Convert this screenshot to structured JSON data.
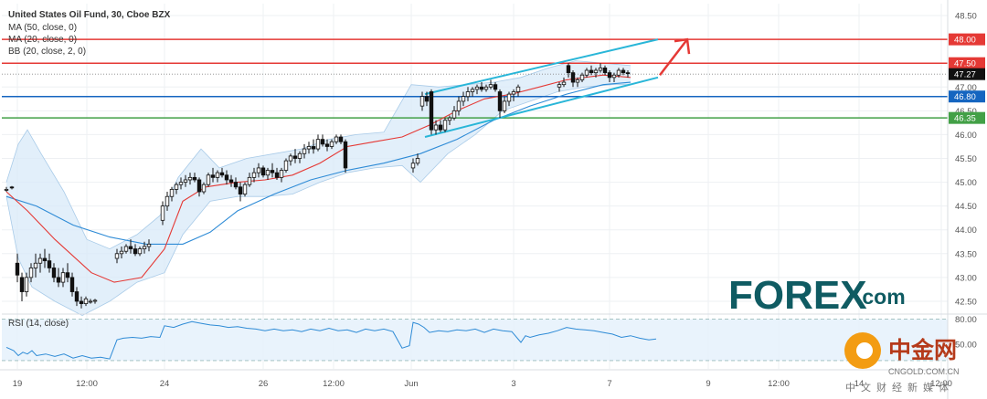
{
  "legend": {
    "title": "United States Oil Fund, 30, Cboe BZX",
    "ma50": "MA (50, close, 0)",
    "ma20": "MA (20, close, 0)",
    "bb": "BB (20, close, 2, 0)"
  },
  "rsi_label": "RSI (14, close)",
  "watermark": {
    "brand": "FOREX",
    "suffix": ".com",
    "cn_brand": "中金网",
    "cn_site": "CNGOLD.COM.CN",
    "cn_sub": "中文财经新媒体"
  },
  "colors": {
    "up": "#26a69a",
    "candle": "#111111",
    "ma20": "#e53935",
    "ma50": "#2e8bd6",
    "bb_fill": "#d8eaf8",
    "channel": "#29b6d8",
    "arrow": "#e53935",
    "level_red": "#e53935",
    "level_blue": "#1565c0",
    "level_green": "#43a047",
    "price_tag": "#111111",
    "rsi_line": "#2e8bd6"
  },
  "chart_data": {
    "type": "candlestick",
    "price_axis": {
      "min": 42.25,
      "max": 48.75,
      "ticks": [
        "48.50",
        "48.00",
        "47.50",
        "47.00",
        "46.50",
        "46.00",
        "45.50",
        "45.00",
        "44.50",
        "44.00",
        "43.50",
        "43.00",
        "42.50"
      ]
    },
    "rsi_axis": {
      "min": 20,
      "max": 80,
      "ticks": [
        "80.00",
        "50.00"
      ]
    },
    "x_axis": {
      "ticks": [
        "19",
        "12:00",
        "24",
        "26",
        "12:00",
        "Jun",
        "3",
        "7",
        "9",
        "12:00",
        "14",
        "12:00"
      ]
    },
    "levels": [
      {
        "value": 48.0,
        "label": "48.00",
        "color": "#e53935"
      },
      {
        "value": 47.5,
        "label": "47.50",
        "color": "#e53935"
      },
      {
        "value": 46.8,
        "label": "46.80",
        "color": "#1565c0"
      },
      {
        "value": 46.35,
        "label": "46.35",
        "color": "#43a047"
      }
    ],
    "last_price": {
      "value": 47.27,
      "label": "47.27"
    },
    "candles": [
      [
        44.85,
        44.9,
        44.8,
        44.85
      ],
      [
        44.9,
        44.92,
        44.85,
        44.88
      ],
      [
        43.3,
        43.5,
        42.9,
        43.05
      ],
      [
        43.0,
        43.1,
        42.5,
        42.7
      ],
      [
        42.7,
        43.1,
        42.6,
        43.0
      ],
      [
        43.0,
        43.3,
        42.9,
        43.2
      ],
      [
        43.2,
        43.5,
        43.0,
        43.3
      ],
      [
        43.3,
        43.5,
        43.1,
        43.4
      ],
      [
        43.4,
        43.6,
        43.2,
        43.35
      ],
      [
        43.35,
        43.5,
        43.1,
        43.2
      ],
      [
        43.2,
        43.3,
        42.9,
        43.0
      ],
      [
        43.0,
        43.2,
        42.8,
        42.9
      ],
      [
        42.9,
        43.2,
        42.8,
        43.1
      ],
      [
        43.1,
        43.3,
        42.9,
        43.0
      ],
      [
        43.0,
        43.1,
        42.6,
        42.7
      ],
      [
        42.7,
        42.8,
        42.4,
        42.5
      ],
      [
        42.5,
        42.6,
        42.35,
        42.45
      ],
      [
        42.45,
        42.6,
        42.4,
        42.55
      ],
      [
        42.5,
        42.55,
        42.45,
        42.5
      ],
      [
        42.5,
        42.55,
        42.45,
        42.52
      ],
      [
        43.4,
        43.6,
        43.3,
        43.5
      ],
      [
        43.5,
        43.65,
        43.4,
        43.55
      ],
      [
        43.55,
        43.7,
        43.5,
        43.65
      ],
      [
        43.65,
        43.8,
        43.5,
        43.6
      ],
      [
        43.6,
        43.7,
        43.45,
        43.5
      ],
      [
        43.5,
        43.65,
        43.45,
        43.6
      ],
      [
        43.6,
        43.75,
        43.5,
        43.65
      ],
      [
        43.65,
        43.8,
        43.55,
        43.7
      ],
      [
        44.2,
        44.6,
        44.1,
        44.5
      ],
      [
        44.5,
        44.8,
        44.4,
        44.7
      ],
      [
        44.7,
        44.9,
        44.6,
        44.85
      ],
      [
        44.85,
        45.0,
        44.75,
        44.95
      ],
      [
        44.95,
        45.1,
        44.85,
        45.0
      ],
      [
        45.0,
        45.15,
        44.9,
        45.05
      ],
      [
        45.05,
        45.2,
        44.95,
        45.1
      ],
      [
        45.1,
        45.2,
        45.0,
        45.05
      ],
      [
        45.05,
        45.1,
        44.7,
        44.8
      ],
      [
        44.8,
        45.0,
        44.75,
        44.95
      ],
      [
        44.95,
        45.2,
        44.9,
        45.15
      ],
      [
        45.15,
        45.3,
        45.0,
        45.1
      ],
      [
        45.1,
        45.25,
        45.0,
        45.2
      ],
      [
        45.2,
        45.3,
        45.1,
        45.15
      ],
      [
        45.15,
        45.25,
        44.95,
        45.05
      ],
      [
        45.05,
        45.15,
        44.9,
        45.0
      ],
      [
        45.0,
        45.1,
        44.85,
        44.9
      ],
      [
        44.9,
        45.0,
        44.6,
        44.75
      ],
      [
        44.75,
        45.0,
        44.7,
        44.95
      ],
      [
        44.95,
        45.2,
        44.9,
        45.1
      ],
      [
        45.1,
        45.3,
        45.0,
        45.2
      ],
      [
        45.2,
        45.4,
        45.1,
        45.3
      ],
      [
        45.3,
        45.35,
        45.1,
        45.15
      ],
      [
        45.15,
        45.3,
        45.05,
        45.25
      ],
      [
        45.25,
        45.4,
        45.1,
        45.2
      ],
      [
        45.2,
        45.3,
        45.05,
        45.1
      ],
      [
        45.1,
        45.3,
        45.0,
        45.25
      ],
      [
        45.25,
        45.5,
        45.2,
        45.45
      ],
      [
        45.45,
        45.6,
        45.35,
        45.55
      ],
      [
        45.55,
        45.7,
        45.4,
        45.5
      ],
      [
        45.5,
        45.65,
        45.4,
        45.6
      ],
      [
        45.6,
        45.8,
        45.5,
        45.7
      ],
      [
        45.7,
        45.85,
        45.6,
        45.75
      ],
      [
        45.75,
        45.9,
        45.6,
        45.7
      ],
      [
        45.7,
        46.0,
        45.65,
        45.9
      ],
      [
        45.9,
        46.0,
        45.75,
        45.8
      ],
      [
        45.8,
        45.9,
        45.65,
        45.75
      ],
      [
        45.75,
        45.9,
        45.7,
        45.85
      ],
      [
        45.85,
        46.0,
        45.8,
        45.95
      ],
      [
        45.95,
        46.0,
        45.8,
        45.85
      ],
      [
        45.85,
        45.9,
        45.2,
        45.3
      ],
      [
        45.3,
        45.5,
        45.2,
        45.4
      ],
      [
        45.4,
        45.6,
        45.35,
        45.5
      ],
      [
        46.6,
        46.9,
        46.5,
        46.8
      ],
      [
        46.8,
        46.9,
        46.6,
        46.7
      ],
      [
        46.9,
        46.95,
        46.0,
        46.1
      ],
      [
        46.1,
        46.3,
        46.0,
        46.2
      ],
      [
        46.2,
        46.3,
        46.05,
        46.1
      ],
      [
        46.1,
        46.35,
        46.05,
        46.3
      ],
      [
        46.3,
        46.4,
        46.2,
        46.35
      ],
      [
        46.35,
        46.6,
        46.3,
        46.5
      ],
      [
        46.5,
        46.8,
        46.4,
        46.7
      ],
      [
        46.7,
        46.9,
        46.6,
        46.8
      ],
      [
        46.8,
        47.0,
        46.7,
        46.9
      ],
      [
        46.9,
        47.0,
        46.8,
        46.95
      ],
      [
        46.95,
        47.05,
        46.85,
        47.0
      ],
      [
        47.0,
        47.1,
        46.9,
        46.95
      ],
      [
        46.95,
        47.05,
        46.9,
        47.0
      ],
      [
        47.0,
        47.15,
        46.95,
        47.05
      ],
      [
        47.05,
        47.1,
        46.9,
        46.95
      ],
      [
        46.9,
        46.95,
        46.35,
        46.5
      ],
      [
        46.5,
        46.8,
        46.45,
        46.7
      ],
      [
        46.7,
        46.9,
        46.6,
        46.85
      ],
      [
        46.85,
        46.95,
        46.7,
        46.9
      ],
      [
        46.9,
        47.05,
        46.8,
        47.0
      ],
      [
        47.0,
        47.1,
        46.9,
        47.05
      ],
      [
        47.05,
        47.2,
        47.0,
        47.1
      ],
      [
        47.45,
        47.5,
        47.2,
        47.3
      ],
      [
        47.3,
        47.35,
        47.0,
        47.1
      ],
      [
        47.1,
        47.2,
        47.0,
        47.15
      ],
      [
        47.15,
        47.3,
        47.1,
        47.25
      ],
      [
        47.25,
        47.4,
        47.2,
        47.35
      ],
      [
        47.35,
        47.45,
        47.25,
        47.3
      ],
      [
        47.3,
        47.4,
        47.2,
        47.35
      ],
      [
        47.35,
        47.5,
        47.3,
        47.4
      ],
      [
        47.4,
        47.45,
        47.25,
        47.3
      ],
      [
        47.3,
        47.35,
        47.1,
        47.2
      ],
      [
        47.2,
        47.3,
        47.1,
        47.25
      ],
      [
        47.25,
        47.4,
        47.2,
        47.35
      ],
      [
        47.35,
        47.4,
        47.25,
        47.3
      ],
      [
        47.3,
        47.35,
        47.2,
        47.28
      ],
      [
        47.28,
        47.32,
        47.2,
        47.26
      ],
      [
        47.26,
        47.3,
        47.22,
        47.27
      ]
    ],
    "candle_x": [
      7,
      13,
      19,
      24,
      29,
      34,
      39,
      44,
      49,
      54,
      59,
      64,
      69,
      74,
      79,
      84,
      89,
      94,
      99,
      104,
      128,
      133,
      138,
      143,
      148,
      153,
      158,
      163,
      178,
      183,
      188,
      193,
      198,
      203,
      208,
      213,
      218,
      223,
      228,
      233,
      238,
      243,
      248,
      253,
      258,
      263,
      268,
      273,
      278,
      283,
      288,
      293,
      298,
      303,
      308,
      313,
      318,
      323,
      328,
      333,
      338,
      343,
      348,
      353,
      358,
      363,
      368,
      373,
      378,
      452,
      457,
      462,
      467,
      472,
      477,
      482,
      487,
      492,
      497,
      502,
      507,
      512,
      517,
      522,
      527,
      532,
      537,
      542,
      547,
      552,
      557,
      562,
      567,
      612,
      617,
      622,
      627,
      632,
      637,
      642,
      647,
      652,
      657,
      662,
      667,
      672,
      677,
      682,
      687
    ],
    "ma20": [
      [
        7,
        44.8
      ],
      [
        30,
        44.4
      ],
      [
        60,
        43.8
      ],
      [
        100,
        43.1
      ],
      [
        125,
        42.9
      ],
      [
        155,
        43.0
      ],
      [
        180,
        43.6
      ],
      [
        200,
        44.6
      ],
      [
        225,
        44.9
      ],
      [
        260,
        45.0
      ],
      [
        290,
        45.05
      ],
      [
        320,
        45.15
      ],
      [
        350,
        45.4
      ],
      [
        380,
        45.75
      ],
      [
        410,
        45.85
      ],
      [
        440,
        45.95
      ],
      [
        470,
        46.2
      ],
      [
        500,
        46.5
      ],
      [
        530,
        46.75
      ],
      [
        560,
        46.85
      ],
      [
        590,
        47.0
      ],
      [
        620,
        47.15
      ],
      [
        660,
        47.25
      ],
      [
        690,
        47.2
      ]
    ],
    "ma50": [
      [
        7,
        44.7
      ],
      [
        40,
        44.5
      ],
      [
        80,
        44.1
      ],
      [
        120,
        43.85
      ],
      [
        160,
        43.7
      ],
      [
        200,
        43.7
      ],
      [
        230,
        43.95
      ],
      [
        260,
        44.4
      ],
      [
        300,
        44.75
      ],
      [
        340,
        45.05
      ],
      [
        380,
        45.25
      ],
      [
        420,
        45.4
      ],
      [
        460,
        45.6
      ],
      [
        500,
        45.9
      ],
      [
        540,
        46.3
      ],
      [
        580,
        46.6
      ],
      [
        620,
        46.85
      ],
      [
        660,
        47.05
      ],
      [
        690,
        47.1
      ]
    ],
    "bb_upper": [
      [
        7,
        45.0
      ],
      [
        20,
        45.8
      ],
      [
        30,
        46.1
      ],
      [
        45,
        45.6
      ],
      [
        70,
        44.8
      ],
      [
        95,
        43.8
      ],
      [
        120,
        43.6
      ],
      [
        150,
        43.9
      ],
      [
        175,
        44.3
      ],
      [
        195,
        45.1
      ],
      [
        220,
        45.7
      ],
      [
        240,
        45.3
      ],
      [
        270,
        45.5
      ],
      [
        300,
        45.6
      ],
      [
        330,
        45.7
      ],
      [
        360,
        45.9
      ],
      [
        390,
        46.0
      ],
      [
        420,
        46.05
      ],
      [
        450,
        47.05
      ],
      [
        480,
        47.0
      ],
      [
        510,
        47.05
      ],
      [
        540,
        47.1
      ],
      [
        570,
        47.2
      ],
      [
        600,
        47.4
      ],
      [
        630,
        47.55
      ],
      [
        660,
        47.5
      ],
      [
        690,
        47.45
      ]
    ],
    "bb_lower": [
      [
        7,
        44.7
      ],
      [
        20,
        43.4
      ],
      [
        35,
        42.8
      ],
      [
        60,
        42.5
      ],
      [
        90,
        42.2
      ],
      [
        120,
        42.5
      ],
      [
        150,
        42.9
      ],
      [
        180,
        43.1
      ],
      [
        200,
        43.9
      ],
      [
        230,
        44.6
      ],
      [
        260,
        44.7
      ],
      [
        290,
        44.7
      ],
      [
        320,
        44.75
      ],
      [
        350,
        45.0
      ],
      [
        380,
        45.2
      ],
      [
        410,
        45.3
      ],
      [
        440,
        45.35
      ],
      [
        460,
        45.0
      ],
      [
        490,
        45.6
      ],
      [
        520,
        46.0
      ],
      [
        550,
        46.5
      ],
      [
        580,
        46.7
      ],
      [
        610,
        46.9
      ],
      [
        640,
        47.0
      ],
      [
        670,
        47.05
      ],
      [
        690,
        47.05
      ]
    ],
    "channel_upper": [
      [
        465,
        46.85
      ],
      [
        720,
        48.0
      ]
    ],
    "channel_lower": [
      [
        465,
        45.95
      ],
      [
        720,
        47.2
      ]
    ],
    "arrow": [
      [
        722,
        47.25
      ],
      [
        752,
        48.0
      ]
    ],
    "rsi": [
      [
        7,
        46
      ],
      [
        15,
        42
      ],
      [
        20,
        36
      ],
      [
        25,
        40
      ],
      [
        30,
        38
      ],
      [
        35,
        42
      ],
      [
        40,
        36
      ],
      [
        50,
        38
      ],
      [
        60,
        35
      ],
      [
        70,
        38
      ],
      [
        80,
        33
      ],
      [
        90,
        36
      ],
      [
        100,
        33
      ],
      [
        110,
        34
      ],
      [
        120,
        32
      ],
      [
        128,
        55
      ],
      [
        135,
        57
      ],
      [
        145,
        58
      ],
      [
        155,
        57
      ],
      [
        165,
        59
      ],
      [
        175,
        58
      ],
      [
        180,
        72
      ],
      [
        190,
        70
      ],
      [
        200,
        74
      ],
      [
        210,
        77
      ],
      [
        220,
        75
      ],
      [
        230,
        73
      ],
      [
        240,
        72
      ],
      [
        250,
        70
      ],
      [
        260,
        71
      ],
      [
        270,
        69
      ],
      [
        280,
        68
      ],
      [
        290,
        66
      ],
      [
        300,
        68
      ],
      [
        310,
        66
      ],
      [
        320,
        67
      ],
      [
        330,
        65
      ],
      [
        340,
        68
      ],
      [
        350,
        66
      ],
      [
        360,
        69
      ],
      [
        370,
        66
      ],
      [
        380,
        67
      ],
      [
        390,
        64
      ],
      [
        400,
        68
      ],
      [
        410,
        66
      ],
      [
        420,
        68
      ],
      [
        430,
        65
      ],
      [
        440,
        45
      ],
      [
        448,
        48
      ],
      [
        452,
        76
      ],
      [
        458,
        74
      ],
      [
        464,
        70
      ],
      [
        470,
        64
      ],
      [
        480,
        66
      ],
      [
        490,
        65
      ],
      [
        500,
        67
      ],
      [
        510,
        66
      ],
      [
        520,
        68
      ],
      [
        530,
        64
      ],
      [
        540,
        68
      ],
      [
        550,
        66
      ],
      [
        560,
        65
      ],
      [
        570,
        52
      ],
      [
        575,
        60
      ],
      [
        580,
        58
      ],
      [
        590,
        61
      ],
      [
        600,
        63
      ],
      [
        610,
        66
      ],
      [
        620,
        70
      ],
      [
        630,
        68
      ],
      [
        640,
        67
      ],
      [
        650,
        66
      ],
      [
        660,
        64
      ],
      [
        670,
        62
      ],
      [
        680,
        58
      ],
      [
        690,
        60
      ],
      [
        700,
        57
      ],
      [
        710,
        55
      ],
      [
        718,
        56
      ]
    ]
  }
}
